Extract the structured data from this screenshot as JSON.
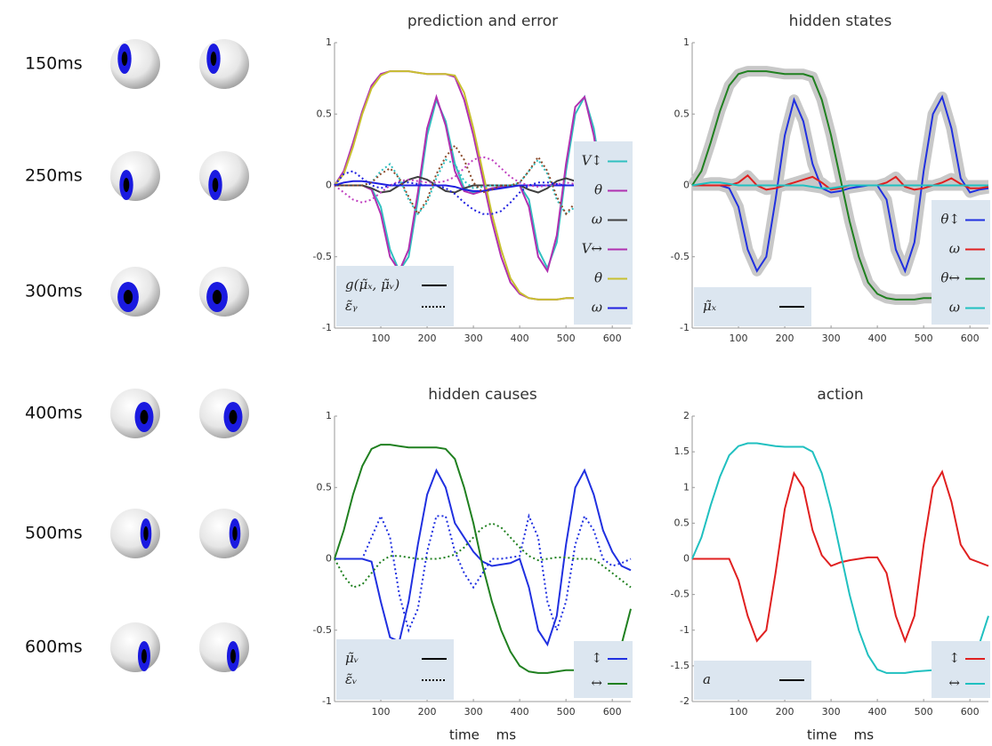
{
  "frames": [
    "150ms",
    "250ms",
    "300ms",
    "400ms",
    "500ms",
    "600ms"
  ],
  "chart_data": [
    {
      "type": "line",
      "title": "prediction and error",
      "x": [
        0,
        20,
        40,
        60,
        80,
        100,
        120,
        140,
        160,
        180,
        200,
        220,
        240,
        260,
        280,
        300,
        320,
        340,
        360,
        380,
        400,
        420,
        440,
        460,
        480,
        500,
        520,
        540,
        560,
        580,
        600,
        620,
        640
      ],
      "xlim": [
        0,
        640
      ],
      "xticks": [
        100,
        200,
        300,
        400,
        500,
        600
      ],
      "ylim": [
        -1,
        1
      ],
      "yticks": [
        -1,
        -0.5,
        0,
        0.5,
        1
      ],
      "series": [
        {
          "name": "V↕",
          "color": "#30c0c0",
          "values": [
            0,
            0,
            0,
            0,
            -0.02,
            -0.15,
            -0.45,
            -0.6,
            -0.5,
            -0.1,
            0.35,
            0.6,
            0.45,
            0.15,
            -0.02,
            -0.05,
            -0.04,
            -0.02,
            -0.01,
            0,
            0,
            -0.1,
            -0.45,
            -0.58,
            -0.4,
            0.1,
            0.5,
            0.62,
            0.4,
            0.0,
            -0.35,
            -0.5,
            -0.45
          ]
        },
        {
          "name": "θ",
          "color": "#b030b0",
          "values": [
            0,
            0,
            0,
            0,
            -0.03,
            -0.2,
            -0.5,
            -0.6,
            -0.45,
            -0.05,
            0.4,
            0.62,
            0.42,
            0.1,
            -0.04,
            -0.06,
            -0.04,
            -0.02,
            -0.01,
            0,
            0,
            -0.15,
            -0.5,
            -0.6,
            -0.35,
            0.15,
            0.55,
            0.62,
            0.35,
            -0.05,
            -0.3,
            -0.4,
            -0.35
          ]
        },
        {
          "name": "ω",
          "color": "#404040",
          "values": [
            0,
            0,
            0,
            0,
            -0.02,
            -0.05,
            -0.04,
            0,
            0.04,
            0.06,
            0.04,
            0,
            -0.04,
            -0.05,
            -0.02,
            0,
            0,
            0,
            0,
            0,
            0,
            -0.03,
            -0.05,
            -0.02,
            0.03,
            0.05,
            0.03,
            0,
            -0.03,
            -0.04,
            -0.02,
            0,
            0
          ]
        },
        {
          "name": "V↔",
          "color": "#b030b0",
          "values": [
            0,
            0.1,
            0.3,
            0.52,
            0.7,
            0.78,
            0.8,
            0.8,
            0.8,
            0.79,
            0.78,
            0.78,
            0.78,
            0.76,
            0.6,
            0.35,
            0.05,
            -0.25,
            -0.5,
            -0.68,
            -0.76,
            -0.79,
            -0.8,
            -0.8,
            -0.8,
            -0.79,
            -0.79,
            -0.79,
            -0.78,
            -0.78,
            -0.77,
            -0.77,
            -0.76
          ]
        },
        {
          "name": "θ",
          "color": "#c8c030",
          "values": [
            0,
            0.08,
            0.27,
            0.5,
            0.68,
            0.77,
            0.8,
            0.8,
            0.8,
            0.79,
            0.78,
            0.78,
            0.78,
            0.77,
            0.65,
            0.4,
            0.1,
            -0.2,
            -0.45,
            -0.65,
            -0.75,
            -0.79,
            -0.8,
            -0.8,
            -0.8,
            -0.79,
            -0.79,
            -0.79,
            -0.78,
            -0.78,
            -0.77,
            -0.77,
            -0.76
          ]
        },
        {
          "name": "ω",
          "color": "#2020e0",
          "values": [
            0,
            0.02,
            0.03,
            0.03,
            0.02,
            0.01,
            0,
            0,
            0,
            0,
            0,
            0,
            0,
            -0.01,
            -0.03,
            -0.04,
            -0.04,
            -0.03,
            -0.02,
            -0.01,
            0,
            0,
            0,
            0,
            0,
            0,
            0,
            0,
            0,
            0,
            0,
            0,
            0
          ]
        },
        {
          "color": "#30c0c0",
          "dash": true,
          "values": [
            0,
            0,
            0,
            0,
            0.02,
            0.1,
            0.15,
            0.05,
            -0.1,
            -0.2,
            -0.12,
            0.05,
            0.18,
            0.15,
            0.03,
            -0.02,
            -0.01,
            0,
            0,
            0,
            0.02,
            0.1,
            0.18,
            0.08,
            -0.1,
            -0.2,
            -0.15,
            0.05,
            0.18,
            0.12,
            0,
            -0.05,
            0
          ]
        },
        {
          "color": "#c040c0",
          "dash": true,
          "values": [
            0,
            -0.05,
            -0.1,
            -0.12,
            -0.1,
            -0.05,
            0,
            0.03,
            0.04,
            0.03,
            0.02,
            0.02,
            0.03,
            0.06,
            0.12,
            0.18,
            0.2,
            0.18,
            0.12,
            0.06,
            0.02,
            0,
            -0.01,
            0,
            0.01,
            0.02,
            0.01,
            0,
            0,
            0,
            0,
            0,
            0
          ]
        },
        {
          "color": "#8b4a2a",
          "dash": true,
          "values": [
            0,
            0,
            0,
            0,
            0.02,
            0.08,
            0.12,
            0.05,
            -0.08,
            -0.2,
            -0.1,
            0.08,
            0.2,
            0.28,
            0.18,
            0.02,
            -0.05,
            -0.03,
            0,
            0,
            0.02,
            0.1,
            0.2,
            0.1,
            -0.08,
            -0.2,
            -0.12,
            0.05,
            0.15,
            0.1,
            0,
            0,
            0
          ]
        },
        {
          "color": "#2020e0",
          "dash": true,
          "values": [
            0,
            0.08,
            0.1,
            0.05,
            0,
            -0.02,
            0,
            0.02,
            0.02,
            0.01,
            0,
            0,
            -0.02,
            -0.06,
            -0.12,
            -0.17,
            -0.2,
            -0.2,
            -0.18,
            -0.12,
            -0.05,
            0,
            0.02,
            0.02,
            0.01,
            0,
            0,
            0,
            0,
            0,
            0,
            0,
            0
          ]
        }
      ],
      "style_legend": [
        {
          "label": "g(μ̃ₓ, μ̃ᵥ)"
        },
        {
          "label": "ε̃ᵧ",
          "dash": true
        }
      ]
    },
    {
      "type": "line",
      "title": "hidden states",
      "confidence_band": true,
      "x": [
        0,
        20,
        40,
        60,
        80,
        100,
        120,
        140,
        160,
        180,
        200,
        220,
        240,
        260,
        280,
        300,
        320,
        340,
        360,
        380,
        400,
        420,
        440,
        460,
        480,
        500,
        520,
        540,
        560,
        580,
        600,
        620,
        640
      ],
      "xlim": [
        0,
        640
      ],
      "xticks": [
        100,
        200,
        300,
        400,
        500,
        600
      ],
      "ylim": [
        -1,
        1
      ],
      "yticks": [
        -1,
        -0.5,
        0,
        0.5,
        1
      ],
      "series": [
        {
          "name": "θ↕",
          "color": "#2030e0",
          "values": [
            0,
            0,
            0,
            0,
            -0.02,
            -0.15,
            -0.45,
            -0.6,
            -0.5,
            -0.1,
            0.35,
            0.6,
            0.45,
            0.15,
            -0.02,
            -0.05,
            -0.04,
            -0.02,
            -0.01,
            0,
            0,
            -0.1,
            -0.45,
            -0.6,
            -0.4,
            0.1,
            0.5,
            0.62,
            0.4,
            0.05,
            -0.05,
            -0.03,
            -0.02
          ]
        },
        {
          "name": "ω",
          "color": "#e02020",
          "values": [
            0,
            0,
            0,
            0,
            0,
            0.02,
            0.07,
            0,
            -0.03,
            -0.02,
            0,
            0.02,
            0.04,
            0.06,
            0.02,
            -0.03,
            -0.02,
            0,
            0,
            0,
            0,
            0.02,
            0.06,
            -0.01,
            -0.03,
            -0.02,
            0,
            0.02,
            0.05,
            0.01,
            -0.02,
            -0.02,
            -0.01
          ]
        },
        {
          "name": "θ↔",
          "color": "#208020",
          "values": [
            0,
            0.1,
            0.3,
            0.52,
            0.7,
            0.78,
            0.8,
            0.8,
            0.8,
            0.79,
            0.78,
            0.78,
            0.78,
            0.76,
            0.6,
            0.35,
            0.05,
            -0.25,
            -0.5,
            -0.68,
            -0.76,
            -0.79,
            -0.8,
            -0.8,
            -0.8,
            -0.79,
            -0.79,
            -0.79,
            -0.78,
            -0.78,
            -0.77,
            -0.77,
            -0.76
          ]
        },
        {
          "name": "ω",
          "color": "#20c0c0",
          "values": [
            0,
            0.01,
            0.02,
            0.02,
            0.01,
            0,
            0,
            0,
            0,
            0,
            0,
            0,
            0,
            -0.01,
            -0.02,
            -0.02,
            -0.01,
            0,
            0,
            0,
            0,
            0,
            0,
            0,
            0,
            0,
            0,
            0,
            0,
            0,
            0,
            0,
            0
          ]
        }
      ],
      "style_legend": [
        {
          "label": "μ̃ₓ"
        }
      ]
    },
    {
      "type": "line",
      "title": "hidden causes",
      "xlabel": "time ms",
      "x": [
        0,
        20,
        40,
        60,
        80,
        100,
        120,
        140,
        160,
        180,
        200,
        220,
        240,
        260,
        280,
        300,
        320,
        340,
        360,
        380,
        400,
        420,
        440,
        460,
        480,
        500,
        520,
        540,
        560,
        580,
        600,
        620,
        640
      ],
      "xlim": [
        0,
        640
      ],
      "xticks": [
        100,
        200,
        300,
        400,
        500,
        600
      ],
      "ylim": [
        -1,
        1
      ],
      "yticks": [
        -1,
        -0.5,
        0,
        0.5,
        1
      ],
      "series": [
        {
          "name": "↕",
          "color": "#2030e0",
          "values": [
            0,
            0,
            0,
            0,
            -0.02,
            -0.3,
            -0.55,
            -0.58,
            -0.3,
            0.1,
            0.45,
            0.62,
            0.5,
            0.25,
            0.15,
            0.05,
            -0.02,
            -0.05,
            -0.04,
            -0.03,
            0,
            -0.2,
            -0.5,
            -0.6,
            -0.4,
            0.1,
            0.5,
            0.62,
            0.45,
            0.2,
            0.05,
            -0.05,
            -0.08
          ]
        },
        {
          "name": "↔",
          "color": "#208020",
          "values": [
            0,
            0.2,
            0.45,
            0.65,
            0.77,
            0.8,
            0.8,
            0.79,
            0.78,
            0.78,
            0.78,
            0.78,
            0.77,
            0.7,
            0.5,
            0.25,
            -0.05,
            -0.3,
            -0.5,
            -0.65,
            -0.75,
            -0.79,
            -0.8,
            -0.8,
            -0.79,
            -0.78,
            -0.78,
            -0.77,
            -0.77,
            -0.76,
            -0.75,
            -0.6,
            -0.35
          ]
        },
        {
          "color": "#2030e0",
          "dash": true,
          "values": [
            0,
            0,
            0,
            0,
            0.15,
            0.3,
            0.15,
            -0.25,
            -0.5,
            -0.35,
            0.05,
            0.3,
            0.3,
            0.05,
            -0.1,
            -0.2,
            -0.1,
            0,
            0,
            0.01,
            0.02,
            0.3,
            0.15,
            -0.3,
            -0.5,
            -0.3,
            0.1,
            0.3,
            0.2,
            0,
            -0.05,
            -0.03,
            0
          ]
        },
        {
          "color": "#208020",
          "dash": true,
          "values": [
            0,
            -0.12,
            -0.2,
            -0.18,
            -0.1,
            -0.02,
            0.02,
            0.02,
            0.01,
            0,
            0,
            0,
            0.01,
            0.03,
            0.08,
            0.15,
            0.22,
            0.25,
            0.22,
            0.15,
            0.08,
            0.02,
            -0.01,
            0,
            0.01,
            0.01,
            0,
            0,
            0,
            -0.05,
            -0.1,
            -0.15,
            -0.2
          ]
        }
      ],
      "style_legend": [
        {
          "label": "μ̃ᵥ"
        },
        {
          "label": "ε̃ᵥ",
          "dash": true
        }
      ]
    },
    {
      "type": "line",
      "title": "action",
      "xlabel": "time ms",
      "x": [
        0,
        20,
        40,
        60,
        80,
        100,
        120,
        140,
        160,
        180,
        200,
        220,
        240,
        260,
        280,
        300,
        320,
        340,
        360,
        380,
        400,
        420,
        440,
        460,
        480,
        500,
        520,
        540,
        560,
        580,
        600,
        620,
        640
      ],
      "xlim": [
        0,
        640
      ],
      "xticks": [
        100,
        200,
        300,
        400,
        500,
        600
      ],
      "ylim": [
        -2,
        2
      ],
      "yticks": [
        -2,
        -1.5,
        -1,
        -0.5,
        0,
        0.5,
        1,
        1.5,
        2
      ],
      "series": [
        {
          "name": "↕",
          "color": "#e02020",
          "values": [
            0,
            0,
            0,
            0,
            0,
            -0.3,
            -0.8,
            -1.15,
            -1.0,
            -0.2,
            0.7,
            1.2,
            1.0,
            0.4,
            0.05,
            -0.1,
            -0.05,
            -0.02,
            0,
            0.02,
            0.02,
            -0.2,
            -0.8,
            -1.15,
            -0.8,
            0.2,
            1.0,
            1.22,
            0.8,
            0.2,
            0,
            -0.05,
            -0.1
          ]
        },
        {
          "name": "↔",
          "color": "#20c0c0",
          "values": [
            0,
            0.3,
            0.75,
            1.15,
            1.45,
            1.58,
            1.62,
            1.62,
            1.6,
            1.58,
            1.57,
            1.57,
            1.57,
            1.5,
            1.2,
            0.7,
            0.1,
            -0.5,
            -1.0,
            -1.35,
            -1.55,
            -1.6,
            -1.6,
            -1.6,
            -1.58,
            -1.57,
            -1.56,
            -1.55,
            -1.55,
            -1.52,
            -1.45,
            -1.2,
            -0.8
          ]
        }
      ],
      "style_legend": [
        {
          "label": "a"
        }
      ]
    }
  ]
}
